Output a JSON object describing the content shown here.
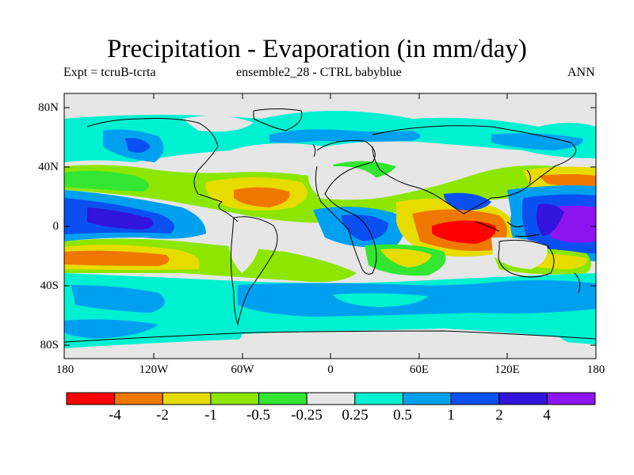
{
  "title": "Precipitation - Evaporation (in mm/day)",
  "subtitle_left": "Expt = tcruB-tcrta",
  "subtitle_center": "ensemble2_28 - CTRL babyblue",
  "subtitle_right": "ANN",
  "lat_labels": [
    "80N",
    "40N",
    "0",
    "40S",
    "80S"
  ],
  "lon_labels": [
    "180",
    "120W",
    "60W",
    "0",
    "60E",
    "120E",
    "180"
  ],
  "colorbar": {
    "labels": [
      "-4",
      "-2",
      "-1",
      "-0.5",
      "-0.25",
      "0.25",
      "0.5",
      "1",
      "2",
      "4"
    ],
    "colors": [
      "#ff0000",
      "#f07800",
      "#e6dc00",
      "#8ce600",
      "#32e632",
      "#e6e6e6",
      "#00f0d2",
      "#00a0f0",
      "#0a50f0",
      "#3214dc",
      "#8c14f0"
    ]
  },
  "colors": {
    "missing": "#e6e6e6",
    "coast": "#000000"
  }
}
